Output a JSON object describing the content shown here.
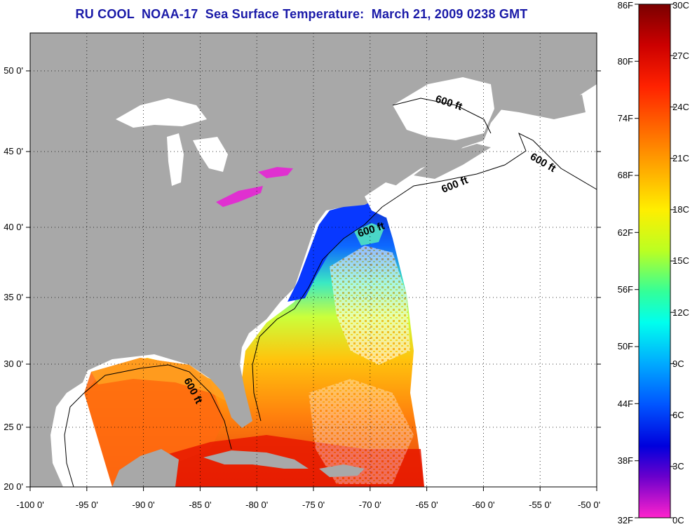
{
  "title": "RU COOL  NOAA-17  Sea Surface Temperature:  March 21, 2009 0238 GMT",
  "x_axis": {
    "ticks": [
      "-100 0'",
      "-95 0'",
      "-90 0'",
      "-85 0'",
      "-80 0'",
      "-75 0'",
      "-70 0'",
      "-65 0'",
      "-60 0'",
      "-55 0'",
      "-50 0'"
    ]
  },
  "y_axis": {
    "ticks": [
      "50 0'",
      "45 0'",
      "40 0'",
      "35 0'",
      "30 0'",
      "25 0'",
      "20 0'"
    ]
  },
  "contour_labels": [
    "600 ft",
    "600 ft",
    "600 ft",
    "600 ft",
    "600 ft"
  ],
  "colorbar": {
    "fahrenheit": [
      "86F",
      "80F",
      "74F",
      "68F",
      "62F",
      "56F",
      "50F",
      "44F",
      "38F",
      "32F"
    ],
    "celsius": [
      "30C",
      "27C",
      "24C",
      "21C",
      "18C",
      "15C",
      "12C",
      "9C",
      "6C",
      "3C",
      "0C"
    ]
  },
  "colors": {
    "land": "#a8a8a8",
    "no_data": "#ffffff",
    "title": "#1a1aa8",
    "grid": "#000000"
  }
}
